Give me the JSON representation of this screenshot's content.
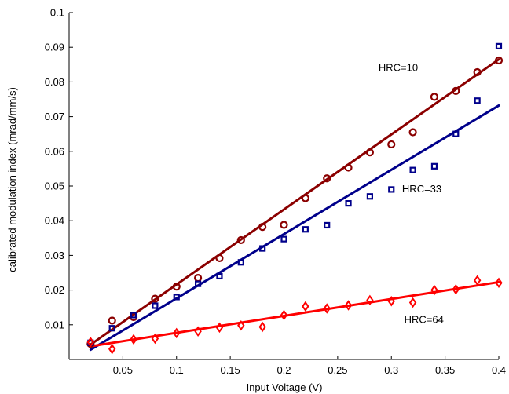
{
  "chart_data": {
    "type": "scatter",
    "title": "",
    "xlabel": "Input Voltage (V)",
    "ylabel": "calibrated modulation index (mrad/mm/s)",
    "xlim": [
      0.0,
      0.4
    ],
    "ylim": [
      0.0,
      0.1
    ],
    "xticks": [
      0.05,
      0.1,
      0.15,
      0.2,
      0.25,
      0.3,
      0.35,
      0.4
    ],
    "xtick_labels": [
      "0.05",
      "0.1",
      "0.15",
      "0.2",
      "0.25",
      "0.3",
      "0.35",
      "0.4"
    ],
    "yticks": [
      0.01,
      0.02,
      0.03,
      0.04,
      0.05,
      0.06,
      0.07,
      0.08,
      0.09,
      0.1
    ],
    "ytick_labels": [
      "0.01",
      "0.02",
      "0.03",
      "0.04",
      "0.05",
      "0.06",
      "0.07",
      "0.08",
      "0.09",
      "0.1"
    ],
    "grid": false,
    "x": [
      0.02,
      0.04,
      0.06,
      0.08,
      0.1,
      0.12,
      0.14,
      0.16,
      0.18,
      0.2,
      0.22,
      0.24,
      0.26,
      0.28,
      0.3,
      0.32,
      0.34,
      0.36,
      0.38,
      0.4
    ],
    "series": [
      {
        "marker": "circle",
        "color": "#8b0000",
        "values": [
          0.0045,
          0.0112,
          0.0122,
          0.0175,
          0.021,
          0.0235,
          0.0292,
          0.0344,
          0.0382,
          0.0388,
          0.0465,
          0.0522,
          0.0553,
          0.0597,
          0.062,
          0.0655,
          0.0757,
          0.0774,
          0.0828,
          0.0862
        ],
        "fit": [
          0.0043,
          0.0865
        ]
      },
      {
        "marker": "square",
        "color": "#00008b",
        "values": [
          0.0048,
          0.009,
          0.0128,
          0.0155,
          0.018,
          0.0218,
          0.024,
          0.028,
          0.032,
          0.0347,
          0.0375,
          0.0387,
          0.045,
          0.047,
          0.049,
          0.0546,
          0.0557,
          0.065,
          0.0746,
          0.0903
        ],
        "fit": [
          0.0028,
          0.0732
        ]
      },
      {
        "marker": "diamond",
        "color": "#ff0000",
        "values": [
          0.005,
          0.003,
          0.0058,
          0.006,
          0.0076,
          0.0081,
          0.0092,
          0.0098,
          0.0094,
          0.0128,
          0.0153,
          0.0147,
          0.0156,
          0.0171,
          0.0168,
          0.0164,
          0.02,
          0.0202,
          0.0228,
          0.0221
        ],
        "fit": [
          0.0038,
          0.0223
        ]
      }
    ],
    "annotations": [
      {
        "text": "HRC=10",
        "x": 0.288,
        "y": 0.0832
      },
      {
        "text": "HRC=33",
        "x": 0.31,
        "y": 0.0482
      },
      {
        "text": "HRC=64",
        "x": 0.312,
        "y": 0.0105
      }
    ]
  }
}
